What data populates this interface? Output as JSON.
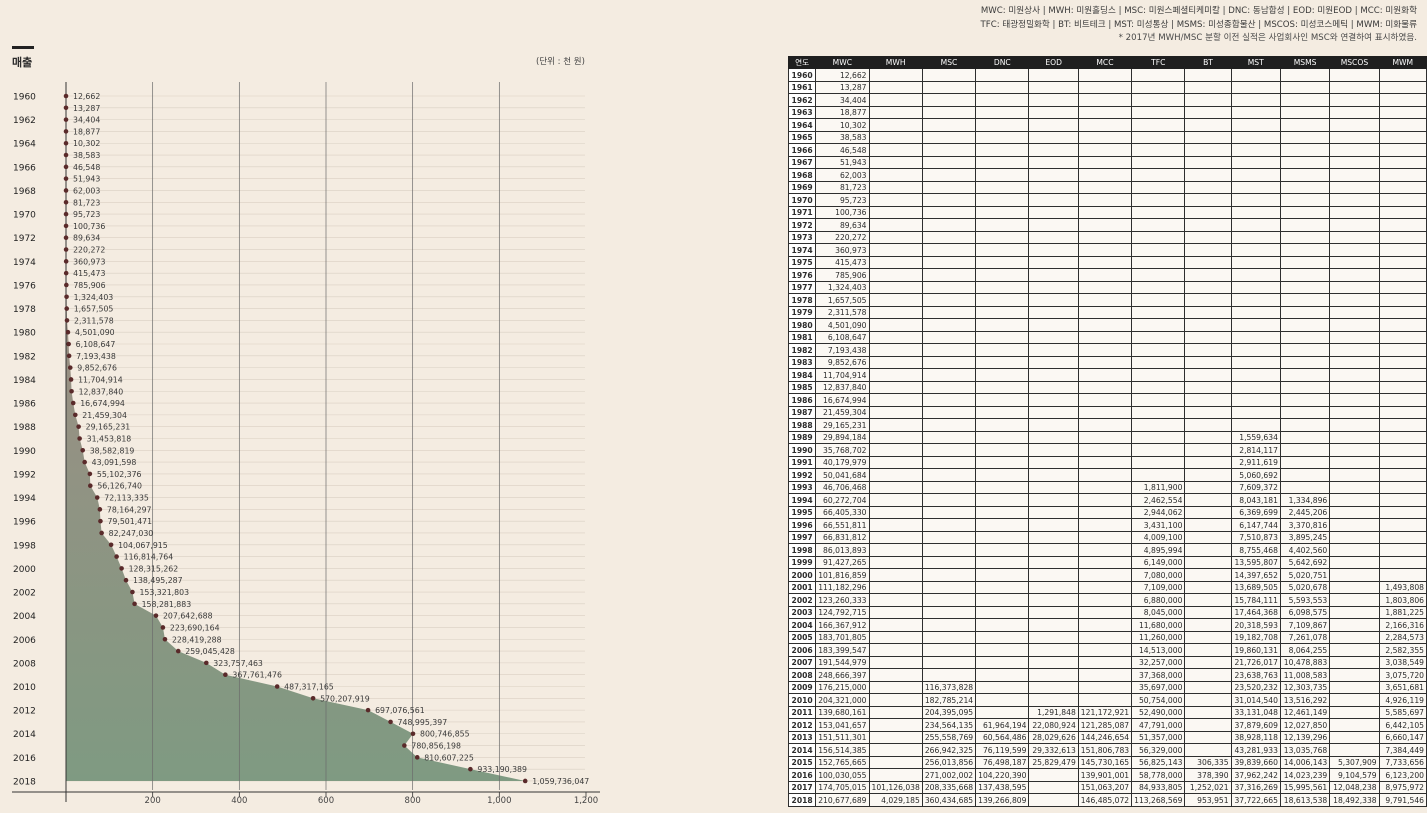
{
  "legend": {
    "line1": "MWC: 미원상사 | MWH: 미원홀딩스 | MSC: 미원스페셜티케미칼 | DNC: 동남합성 | EOD: 미원EOD | MCC: 미원화학",
    "line2": "TFC: 태광정밀화학 | BT: 비트테크 | MST: 미성통상 | MSMS: 미성종합물산 | MSCOS: 미성코스메틱 | MWM: 미화물류",
    "note": "* 2017년 MWH/MSC 분할 이전 실적은 사업회사인 MSC와 연결하여 표시하였음."
  },
  "chart": {
    "title": "매출",
    "unit": "(단위 : 천 원)"
  },
  "chart_data": {
    "type": "area",
    "title": "매출",
    "xlim": [
      0,
      1200
    ],
    "x_ticks": [
      "200",
      "400",
      "600",
      "800",
      "1,000",
      "1,200"
    ],
    "y_ticks": [
      "1960",
      "1962",
      "1964",
      "1966",
      "1968",
      "1970",
      "1972",
      "1974",
      "1976",
      "1978",
      "1980",
      "1982",
      "1984",
      "1986",
      "1988",
      "1990",
      "1992",
      "1994",
      "1996",
      "1998",
      "2000",
      "2002",
      "2004",
      "2006",
      "2008",
      "2010",
      "2012",
      "2014",
      "2016",
      "2018"
    ],
    "years": [
      1960,
      1961,
      1962,
      1963,
      1964,
      1965,
      1966,
      1967,
      1968,
      1969,
      1970,
      1971,
      1972,
      1973,
      1974,
      1975,
      1976,
      1977,
      1978,
      1979,
      1980,
      1981,
      1982,
      1983,
      1984,
      1985,
      1986,
      1987,
      1988,
      1989,
      1990,
      1991,
      1992,
      1993,
      1994,
      1995,
      1996,
      1997,
      1998,
      1999,
      2000,
      2001,
      2002,
      2003,
      2004,
      2005,
      2006,
      2007,
      2008,
      2009,
      2010,
      2011,
      2012,
      2013,
      2014,
      2015,
      2016,
      2017,
      2018
    ],
    "values": [
      12662,
      13287,
      34404,
      18877,
      10302,
      38583,
      46548,
      51943,
      62003,
      81723,
      95723,
      100736,
      89634,
      220272,
      360973,
      415473,
      785906,
      1324403,
      1657505,
      2311578,
      4501090,
      6108647,
      7193438,
      9852676,
      11704914,
      12837840,
      16674994,
      21459304,
      29165231,
      31453818,
      38582819,
      43091598,
      55102376,
      56126740,
      72113335,
      78164297,
      79501471,
      82247030,
      104067915,
      116814764,
      128315262,
      138495287,
      153321803,
      158281883,
      207642688,
      223690164,
      228419288,
      259045428,
      323757463,
      367761476,
      487317165,
      570207919,
      697076561,
      748995397,
      800746855,
      780856198,
      810607225,
      933190389,
      1059736047
    ],
    "labels": [
      "12,662",
      "13,287",
      "34,404",
      "18,877",
      "10,302",
      "38,583",
      "46,548",
      "51,943",
      "62,003",
      "81,723",
      "95,723",
      "100,736",
      "89,634",
      "220,272",
      "360,973",
      "415,473",
      "785,906",
      "1,324,403",
      "1,657,505",
      "2,311,578",
      "4,501,090",
      "6,108,647",
      "7,193,438",
      "9,852,676",
      "11,704,914",
      "12,837,840",
      "16,674,994",
      "21,459,304",
      "29,165,231",
      "31,453,818",
      "38,582,819",
      "43,091,598",
      "55,102,376",
      "56,126,740",
      "72,113,335",
      "78,164,297",
      "79,501,471",
      "82,247,030",
      "104,067,915",
      "116,814,764",
      "128,315,262",
      "138,495,287",
      "153,321,803",
      "158,281,883",
      "207,642,688",
      "223,690,164",
      "228,419,288",
      "259,045,428",
      "323,757,463",
      "367,761,476",
      "487,317,165",
      "570,207,919",
      "697,076,561",
      "748,995,397",
      "800,746,855",
      "780,856,198",
      "810,607,225",
      "933,190,389",
      "1,059,736,047"
    ],
    "colors": {
      "area_top": "#a88a84",
      "area_bottom": "#7f9a82",
      "dot": "#5a2a2a",
      "grid": "#5a5a5a"
    }
  },
  "table": {
    "headers": [
      "연도",
      "MWC",
      "MWH",
      "MSC",
      "DNC",
      "EOD",
      "MCC",
      "TFC",
      "BT",
      "MST",
      "MSMS",
      "MSCOS",
      "MWM"
    ],
    "rows": [
      [
        "1960",
        "12,662",
        "",
        "",
        "",
        "",
        "",
        "",
        "",
        "",
        "",
        "",
        ""
      ],
      [
        "1961",
        "13,287",
        "",
        "",
        "",
        "",
        "",
        "",
        "",
        "",
        "",
        "",
        ""
      ],
      [
        "1962",
        "34,404",
        "",
        "",
        "",
        "",
        "",
        "",
        "",
        "",
        "",
        "",
        ""
      ],
      [
        "1963",
        "18,877",
        "",
        "",
        "",
        "",
        "",
        "",
        "",
        "",
        "",
        "",
        ""
      ],
      [
        "1964",
        "10,302",
        "",
        "",
        "",
        "",
        "",
        "",
        "",
        "",
        "",
        "",
        ""
      ],
      [
        "1965",
        "38,583",
        "",
        "",
        "",
        "",
        "",
        "",
        "",
        "",
        "",
        "",
        ""
      ],
      [
        "1966",
        "46,548",
        "",
        "",
        "",
        "",
        "",
        "",
        "",
        "",
        "",
        "",
        ""
      ],
      [
        "1967",
        "51,943",
        "",
        "",
        "",
        "",
        "",
        "",
        "",
        "",
        "",
        "",
        ""
      ],
      [
        "1968",
        "62,003",
        "",
        "",
        "",
        "",
        "",
        "",
        "",
        "",
        "",
        "",
        ""
      ],
      [
        "1969",
        "81,723",
        "",
        "",
        "",
        "",
        "",
        "",
        "",
        "",
        "",
        "",
        ""
      ],
      [
        "1970",
        "95,723",
        "",
        "",
        "",
        "",
        "",
        "",
        "",
        "",
        "",
        "",
        ""
      ],
      [
        "1971",
        "100,736",
        "",
        "",
        "",
        "",
        "",
        "",
        "",
        "",
        "",
        "",
        ""
      ],
      [
        "1972",
        "89,634",
        "",
        "",
        "",
        "",
        "",
        "",
        "",
        "",
        "",
        "",
        ""
      ],
      [
        "1973",
        "220,272",
        "",
        "",
        "",
        "",
        "",
        "",
        "",
        "",
        "",
        "",
        ""
      ],
      [
        "1974",
        "360,973",
        "",
        "",
        "",
        "",
        "",
        "",
        "",
        "",
        "",
        "",
        ""
      ],
      [
        "1975",
        "415,473",
        "",
        "",
        "",
        "",
        "",
        "",
        "",
        "",
        "",
        "",
        ""
      ],
      [
        "1976",
        "785,906",
        "",
        "",
        "",
        "",
        "",
        "",
        "",
        "",
        "",
        "",
        ""
      ],
      [
        "1977",
        "1,324,403",
        "",
        "",
        "",
        "",
        "",
        "",
        "",
        "",
        "",
        "",
        ""
      ],
      [
        "1978",
        "1,657,505",
        "",
        "",
        "",
        "",
        "",
        "",
        "",
        "",
        "",
        "",
        ""
      ],
      [
        "1979",
        "2,311,578",
        "",
        "",
        "",
        "",
        "",
        "",
        "",
        "",
        "",
        "",
        ""
      ],
      [
        "1980",
        "4,501,090",
        "",
        "",
        "",
        "",
        "",
        "",
        "",
        "",
        "",
        "",
        ""
      ],
      [
        "1981",
        "6,108,647",
        "",
        "",
        "",
        "",
        "",
        "",
        "",
        "",
        "",
        "",
        ""
      ],
      [
        "1982",
        "7,193,438",
        "",
        "",
        "",
        "",
        "",
        "",
        "",
        "",
        "",
        "",
        ""
      ],
      [
        "1983",
        "9,852,676",
        "",
        "",
        "",
        "",
        "",
        "",
        "",
        "",
        "",
        "",
        ""
      ],
      [
        "1984",
        "11,704,914",
        "",
        "",
        "",
        "",
        "",
        "",
        "",
        "",
        "",
        "",
        ""
      ],
      [
        "1985",
        "12,837,840",
        "",
        "",
        "",
        "",
        "",
        "",
        "",
        "",
        "",
        "",
        ""
      ],
      [
        "1986",
        "16,674,994",
        "",
        "",
        "",
        "",
        "",
        "",
        "",
        "",
        "",
        "",
        ""
      ],
      [
        "1987",
        "21,459,304",
        "",
        "",
        "",
        "",
        "",
        "",
        "",
        "",
        "",
        "",
        ""
      ],
      [
        "1988",
        "29,165,231",
        "",
        "",
        "",
        "",
        "",
        "",
        "",
        "",
        "",
        "",
        ""
      ],
      [
        "1989",
        "29,894,184",
        "",
        "",
        "",
        "",
        "",
        "",
        "",
        "1,559,634",
        "",
        "",
        ""
      ],
      [
        "1990",
        "35,768,702",
        "",
        "",
        "",
        "",
        "",
        "",
        "",
        "2,814,117",
        "",
        "",
        ""
      ],
      [
        "1991",
        "40,179,979",
        "",
        "",
        "",
        "",
        "",
        "",
        "",
        "2,911,619",
        "",
        "",
        ""
      ],
      [
        "1992",
        "50,041,684",
        "",
        "",
        "",
        "",
        "",
        "",
        "",
        "5,060,692",
        "",
        "",
        ""
      ],
      [
        "1993",
        "46,706,468",
        "",
        "",
        "",
        "",
        "",
        "1,811,900",
        "",
        "7,609,372",
        "",
        "",
        ""
      ],
      [
        "1994",
        "60,272,704",
        "",
        "",
        "",
        "",
        "",
        "2,462,554",
        "",
        "8,043,181",
        "1,334,896",
        "",
        ""
      ],
      [
        "1995",
        "66,405,330",
        "",
        "",
        "",
        "",
        "",
        "2,944,062",
        "",
        "6,369,699",
        "2,445,206",
        "",
        ""
      ],
      [
        "1996",
        "66,551,811",
        "",
        "",
        "",
        "",
        "",
        "3,431,100",
        "",
        "6,147,744",
        "3,370,816",
        "",
        ""
      ],
      [
        "1997",
        "66,831,812",
        "",
        "",
        "",
        "",
        "",
        "4,009,100",
        "",
        "7,510,873",
        "3,895,245",
        "",
        ""
      ],
      [
        "1998",
        "86,013,893",
        "",
        "",
        "",
        "",
        "",
        "4,895,994",
        "",
        "8,755,468",
        "4,402,560",
        "",
        ""
      ],
      [
        "1999",
        "91,427,265",
        "",
        "",
        "",
        "",
        "",
        "6,149,000",
        "",
        "13,595,807",
        "5,642,692",
        "",
        ""
      ],
      [
        "2000",
        "101,816,859",
        "",
        "",
        "",
        "",
        "",
        "7,080,000",
        "",
        "14,397,652",
        "5,020,751",
        "",
        ""
      ],
      [
        "2001",
        "111,182,296",
        "",
        "",
        "",
        "",
        "",
        "7,109,000",
        "",
        "13,689,505",
        "5,020,678",
        "",
        "1,493,808"
      ],
      [
        "2002",
        "123,260,333",
        "",
        "",
        "",
        "",
        "",
        "6,880,000",
        "",
        "15,784,111",
        "5,593,553",
        "",
        "1,803,806"
      ],
      [
        "2003",
        "124,792,715",
        "",
        "",
        "",
        "",
        "",
        "8,045,000",
        "",
        "17,464,368",
        "6,098,575",
        "",
        "1,881,225"
      ],
      [
        "2004",
        "166,367,912",
        "",
        "",
        "",
        "",
        "",
        "11,680,000",
        "",
        "20,318,593",
        "7,109,867",
        "",
        "2,166,316"
      ],
      [
        "2005",
        "183,701,805",
        "",
        "",
        "",
        "",
        "",
        "11,260,000",
        "",
        "19,182,708",
        "7,261,078",
        "",
        "2,284,573"
      ],
      [
        "2006",
        "183,399,547",
        "",
        "",
        "",
        "",
        "",
        "14,513,000",
        "",
        "19,860,131",
        "8,064,255",
        "",
        "2,582,355"
      ],
      [
        "2007",
        "191,544,979",
        "",
        "",
        "",
        "",
        "",
        "32,257,000",
        "",
        "21,726,017",
        "10,478,883",
        "",
        "3,038,549"
      ],
      [
        "2008",
        "248,666,397",
        "",
        "",
        "",
        "",
        "",
        "37,368,000",
        "",
        "23,638,763",
        "11,008,583",
        "",
        "3,075,720"
      ],
      [
        "2009",
        "176,215,000",
        "",
        "116,373,828",
        "",
        "",
        "",
        "35,697,000",
        "",
        "23,520,232",
        "12,303,735",
        "",
        "3,651,681"
      ],
      [
        "2010",
        "204,321,000",
        "",
        "182,785,214",
        "",
        "",
        "",
        "50,754,000",
        "",
        "31,014,540",
        "13,516,292",
        "",
        "4,926,119"
      ],
      [
        "2011",
        "139,680,161",
        "",
        "204,395,095",
        "",
        "1,291,848",
        "121,172,921",
        "52,490,000",
        "",
        "33,131,048",
        "12,461,149",
        "",
        "5,585,697"
      ],
      [
        "2012",
        "153,041,657",
        "",
        "234,564,135",
        "61,964,194",
        "22,080,924",
        "121,285,087",
        "47,791,000",
        "",
        "37,879,609",
        "12,027,850",
        "",
        "6,442,105"
      ],
      [
        "2013",
        "151,511,301",
        "",
        "255,558,769",
        "60,564,486",
        "28,029,626",
        "144,246,654",
        "51,357,000",
        "",
        "38,928,118",
        "12,139,296",
        "",
        "6,660,147"
      ],
      [
        "2014",
        "156,514,385",
        "",
        "266,942,325",
        "76,119,599",
        "29,332,613",
        "151,806,783",
        "56,329,000",
        "",
        "43,281,933",
        "13,035,768",
        "",
        "7,384,449"
      ],
      [
        "2015",
        "152,765,665",
        "",
        "256,013,856",
        "76,498,187",
        "25,829,479",
        "145,730,165",
        "56,825,143",
        "306,335",
        "39,839,660",
        "14,006,143",
        "5,307,909",
        "7,733,656"
      ],
      [
        "2016",
        "100,030,055",
        "",
        "271,002,002",
        "104,220,390",
        "",
        "139,901,001",
        "58,778,000",
        "378,390",
        "37,962,242",
        "14,023,239",
        "9,104,579",
        "6,123,200"
      ],
      [
        "2017",
        "174,705,015",
        "101,126,038",
        "208,335,668",
        "137,438,595",
        "",
        "151,063,207",
        "84,933,805",
        "1,252,021",
        "37,316,269",
        "15,995,561",
        "12,048,238",
        "8,975,972"
      ],
      [
        "2018",
        "210,677,689",
        "4,029,185",
        "360,434,685",
        "139,266,809",
        "",
        "146,485,072",
        "113,268,569",
        "953,951",
        "37,722,665",
        "18,613,538",
        "18,492,338",
        "9,791,546"
      ]
    ]
  }
}
